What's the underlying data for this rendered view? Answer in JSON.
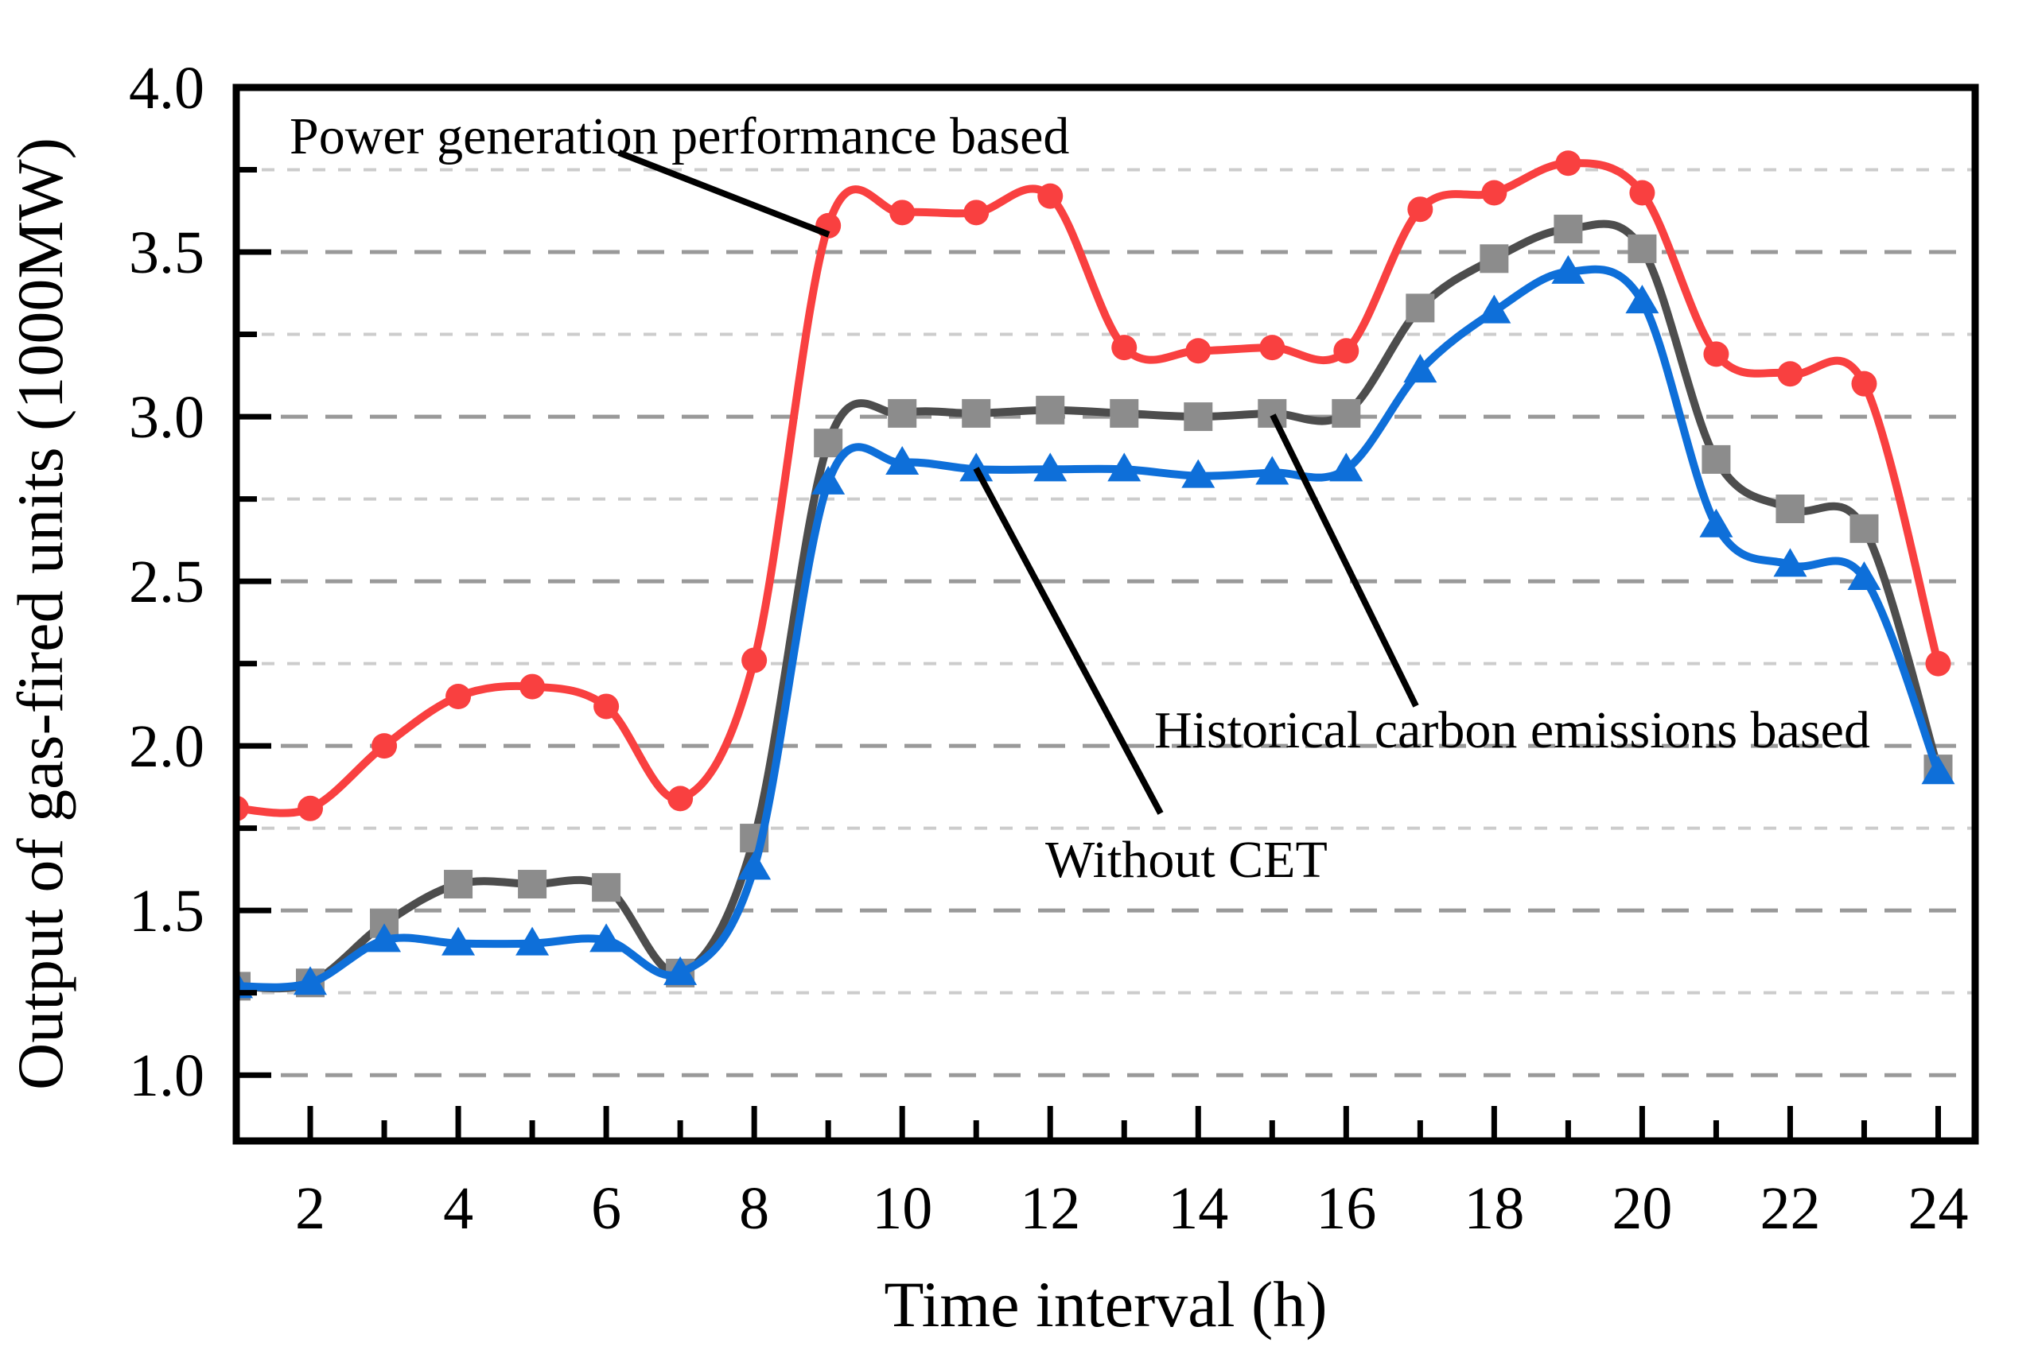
{
  "chart_data": {
    "type": "line",
    "title": "",
    "xlabel": "Time interval (h)",
    "ylabel": "Output of gas-fired units (1000MW)",
    "x": [
      1,
      2,
      3,
      4,
      5,
      6,
      7,
      8,
      9,
      10,
      11,
      12,
      13,
      14,
      15,
      16,
      17,
      18,
      19,
      20,
      21,
      22,
      23,
      24
    ],
    "xlim": [
      1,
      24.5
    ],
    "ylim": [
      0.8,
      4.0
    ],
    "x_major_ticks": [
      2,
      4,
      6,
      8,
      10,
      12,
      14,
      16,
      18,
      20,
      22,
      24
    ],
    "x_minor_ticks": [
      3,
      5,
      7,
      9,
      11,
      13,
      15,
      17,
      19,
      21,
      23
    ],
    "y_major_ticks": [
      1.0,
      1.5,
      2.0,
      2.5,
      3.0,
      3.5,
      4.0
    ],
    "y_minor_ticks": [
      1.25,
      1.75,
      2.25,
      2.75,
      3.25,
      3.75
    ],
    "y_major_gridlines": [
      1.0,
      1.5,
      2.0,
      2.5,
      3.0,
      3.5
    ],
    "y_minor_gridlines": [
      1.25,
      1.75,
      2.25,
      2.75,
      3.25,
      3.75
    ],
    "grid": "horizontal-dashed",
    "legend_position": "none (annotated with leader lines)",
    "colors": {
      "red_series": "#f94040",
      "gray_series_line": "#4d4d4d",
      "gray_series_marker": "#8c8c8c",
      "blue_series": "#0e6fd9",
      "major_grid": "#999999",
      "minor_grid": "#cccccc",
      "axis_frame": "#000000"
    },
    "series": [
      {
        "name": "Power generation performance based",
        "marker": "circle",
        "color": "#f94040",
        "marker_color": "#f94040",
        "values": [
          1.81,
          1.81,
          2.0,
          2.15,
          2.18,
          2.12,
          1.84,
          2.26,
          3.58,
          3.62,
          3.62,
          3.67,
          3.21,
          3.2,
          3.21,
          3.2,
          3.63,
          3.68,
          3.77,
          3.68,
          3.19,
          3.13,
          3.1,
          2.25
        ]
      },
      {
        "name": "Historical carbon emissions based",
        "marker": "square",
        "color": "#4d4d4d",
        "marker_color": "#8c8c8c",
        "values": [
          1.27,
          1.28,
          1.46,
          1.58,
          1.58,
          1.57,
          1.31,
          1.72,
          2.92,
          3.01,
          3.01,
          3.02,
          3.01,
          3.0,
          3.01,
          3.01,
          3.33,
          3.48,
          3.57,
          3.51,
          2.87,
          2.72,
          2.66,
          1.93
        ]
      },
      {
        "name": "Without CET",
        "marker": "triangle",
        "color": "#0e6fd9",
        "marker_color": "#0e6fd9",
        "values": [
          1.27,
          1.28,
          1.41,
          1.4,
          1.4,
          1.41,
          1.31,
          1.63,
          2.8,
          2.86,
          2.84,
          2.84,
          2.84,
          2.82,
          2.83,
          2.84,
          3.14,
          3.32,
          3.44,
          3.35,
          2.67,
          2.55,
          2.51,
          1.92
        ]
      }
    ],
    "annotations": [
      {
        "text": "Power generation performance based",
        "points_to_series": "Power generation performance based",
        "points_to_hour": 9,
        "leader": [
          [
            778,
            192
          ],
          [
            1042,
            295
          ]
        ]
      },
      {
        "text": "Historical carbon emissions based",
        "points_to_series": "Historical carbon emissions based",
        "points_to_hour": 15,
        "leader": [
          [
            1600,
            522
          ],
          [
            1780,
            888
          ]
        ]
      },
      {
        "text": "Without CET",
        "points_to_series": "Without CET",
        "points_to_hour": 11,
        "leader": [
          [
            1227,
            589
          ],
          [
            1459,
            1023
          ]
        ]
      }
    ]
  }
}
